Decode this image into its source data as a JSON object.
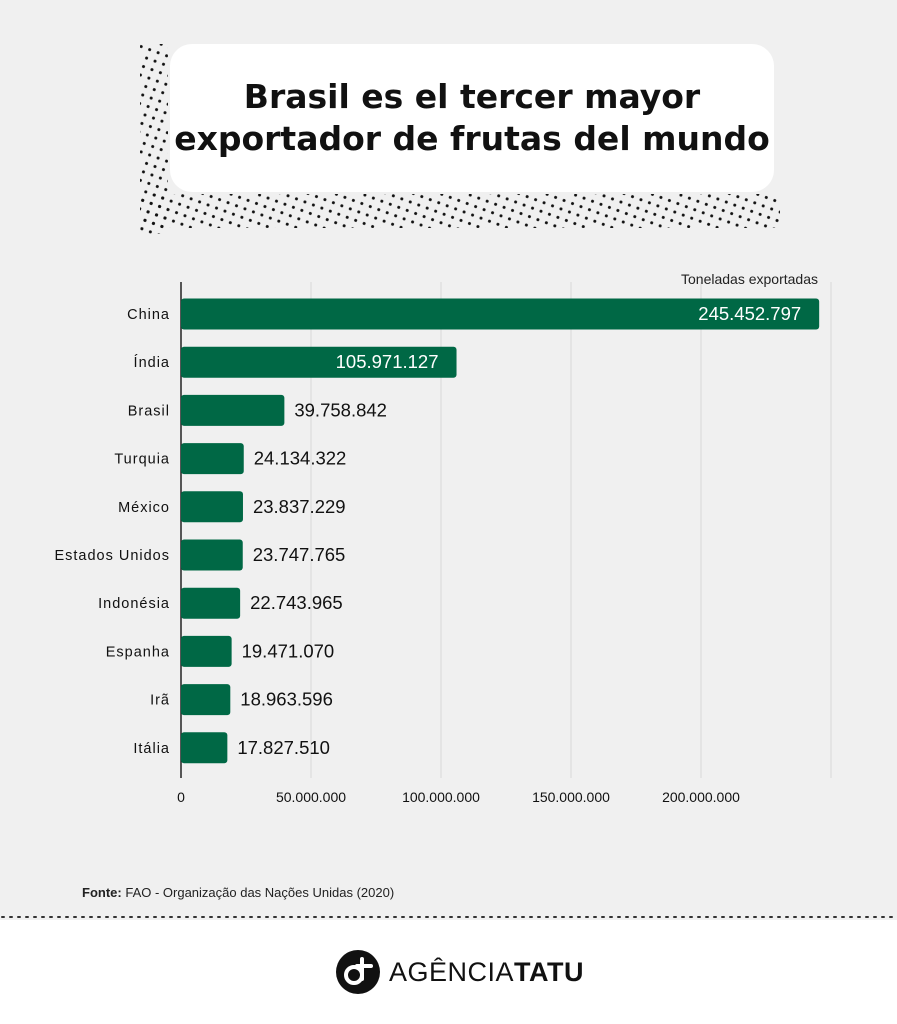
{
  "title": {
    "line1": "Brasil es el tercer mayor",
    "line2": "exportador de frutas del mundo"
  },
  "chart_data": {
    "type": "bar",
    "orientation": "horizontal",
    "unit_label": "Toneladas exportadas",
    "categories": [
      "China",
      "Índia",
      "Brasil",
      "Turquia",
      "México",
      "Estados Unidos",
      "Indonésia",
      "Espanha",
      "Irã",
      "Itália"
    ],
    "values": [
      245452797,
      105971127,
      39758842,
      24134322,
      23837229,
      23747765,
      22743965,
      19471070,
      18963596,
      17827510
    ],
    "value_labels": [
      "245.452.797",
      "105.971.127",
      "39.758.842",
      "24.134.322",
      "23.837.229",
      "23.747.765",
      "22.743.965",
      "19.471.070",
      "18.963.596",
      "17.827.510"
    ],
    "xlim": [
      0,
      250000000
    ],
    "xticks": [
      0,
      50000000,
      100000000,
      150000000,
      200000000
    ],
    "xtick_labels": [
      "0",
      "50.000.000",
      "100.000.000",
      "150.000.000",
      "200.000.000"
    ],
    "grid": true,
    "bar_color": "#006845"
  },
  "source": {
    "label": "Fonte:",
    "text": "FAO - Organização das Nações Unidas (2020)"
  },
  "brand": {
    "name_regular": "AGÊNCIA",
    "name_bold": "TATU",
    "icon": "tatu-logo-icon"
  }
}
